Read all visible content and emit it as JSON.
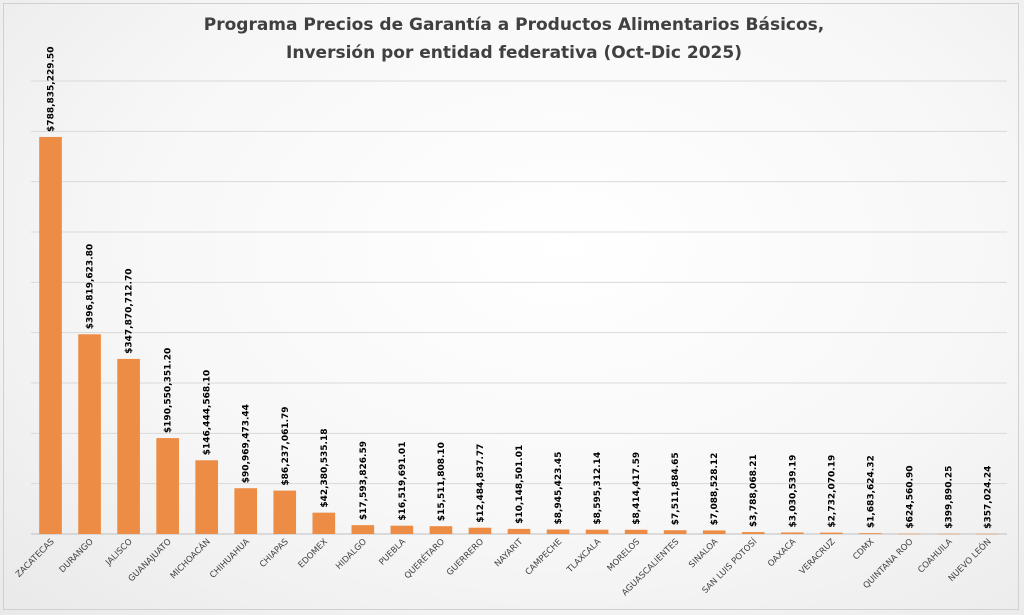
{
  "chart_data": {
    "type": "bar",
    "title": [
      "Programa Precios de Garantía a Productos Alimentarios Básicos,",
      "Inversión por entidad federativa (Oct-Dic 2025)"
    ],
    "xlabel": "",
    "ylabel": "",
    "ylim": [
      0,
      900000000
    ],
    "grid": true,
    "legend": "none",
    "bar_color": "#ED8C45",
    "grid_color": "#D9D9D9",
    "categories": [
      "ZACATECAS",
      "DURANGO",
      "JALISCO",
      "GUANAJUATO",
      "MICHOACÁN",
      "CHIHUAHUA",
      "CHIAPAS",
      "EDOMEX",
      "HIDALGO",
      "PUEBLA",
      "QUERÉTARO",
      "GUERRERO",
      "NAYARIT",
      "CAMPECHE",
      "TLAXCALA",
      "MORELOS",
      "AGUASCALIENTES",
      "SINALOA",
      "SAN LUIS POTOSÍ",
      "OAXACA",
      "VERACRUZ",
      "CDMX",
      "QUINTANA ROO",
      "COAHUILA",
      "NUEVO LEÓN"
    ],
    "values": [
      788835229.5,
      396819623.8,
      347870712.7,
      190550351.2,
      146444568.1,
      90969473.44,
      86237061.79,
      42380535.18,
      17593826.59,
      16519691.01,
      15511808.1,
      12484837.77,
      10148501.01,
      8945423.45,
      8595312.14,
      8414417.59,
      7511884.65,
      7088528.12,
      3788068.21,
      3030539.19,
      2732070.19,
      1683624.32,
      624560.9,
      399890.25,
      357024.24
    ],
    "data_labels": [
      "$788,835,229.50",
      "$396,819,623.80",
      "$347,870,712.70",
      "$190,550,351.20",
      "$146,444,568.10",
      "$90,969,473.44",
      "$86,237,061.79",
      "$42,380,535.18",
      "$17,593,826.59",
      "$16,519,691.01",
      "$15,511,808.10",
      "$12,484,837.77",
      "$10,148,501.01",
      "$8,945,423.45",
      "$8,595,312.14",
      "$8,414,417.59",
      "$7,511,884.65",
      "$7,088,528.12",
      "$3,788,068.21",
      "$3,030,539.19",
      "$2,732,070.19",
      "$1,683,624.32",
      "$624,560.90",
      "$399,890.25",
      "$357,024.24"
    ]
  }
}
